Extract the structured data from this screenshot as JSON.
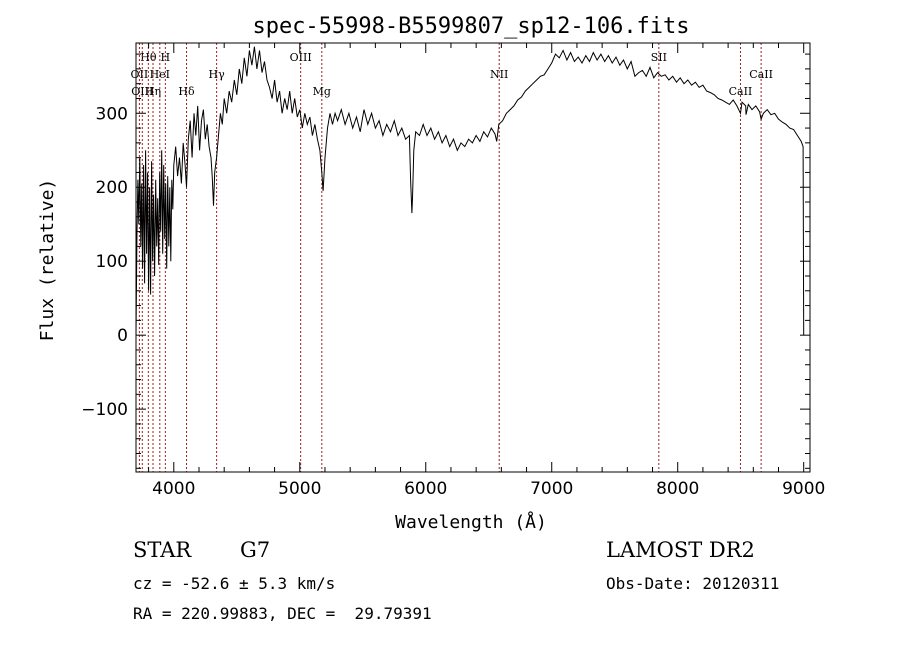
{
  "chart_data": {
    "type": "line",
    "title": "spec-55998-B5599807_sp12-106.fits",
    "xlabel": "Wavelength (Å)",
    "ylabel": "Flux (relative)",
    "xlim": [
      3700,
      9050
    ],
    "ylim": [
      -185,
      395
    ],
    "x_ticks": [
      4000,
      5000,
      6000,
      7000,
      8000,
      9000
    ],
    "y_ticks": [
      -100,
      0,
      100,
      200,
      300
    ],
    "grid": false,
    "series": [
      {
        "values": [
          [
            3700,
            0
          ],
          [
            3708,
            140
          ],
          [
            3715,
            210
          ],
          [
            3722,
            150
          ],
          [
            3730,
            240
          ],
          [
            3738,
            120
          ],
          [
            3745,
            205
          ],
          [
            3752,
            90
          ],
          [
            3760,
            230
          ],
          [
            3768,
            70
          ],
          [
            3776,
            250
          ],
          [
            3784,
            110
          ],
          [
            3792,
            220
          ],
          [
            3800,
            60
          ],
          [
            3808,
            200
          ],
          [
            3816,
            55
          ],
          [
            3824,
            235
          ],
          [
            3832,
            100
          ],
          [
            3840,
            190
          ],
          [
            3848,
            80
          ],
          [
            3856,
            210
          ],
          [
            3864,
            120
          ],
          [
            3872,
            185
          ],
          [
            3880,
            95
          ],
          [
            3888,
            220
          ],
          [
            3896,
            140
          ],
          [
            3904,
            250
          ],
          [
            3912,
            110
          ],
          [
            3920,
            230
          ],
          [
            3928,
            130
          ],
          [
            3936,
            205
          ],
          [
            3944,
            90
          ],
          [
            3952,
            215
          ],
          [
            3960,
            120
          ],
          [
            3968,
            200
          ],
          [
            3976,
            100
          ],
          [
            3984,
            210
          ],
          [
            3992,
            170
          ],
          [
            4000,
            230
          ],
          [
            4015,
            255
          ],
          [
            4030,
            215
          ],
          [
            4045,
            240
          ],
          [
            4060,
            205
          ],
          [
            4075,
            260
          ],
          [
            4090,
            230
          ],
          [
            4101,
            200
          ],
          [
            4115,
            265
          ],
          [
            4130,
            290
          ],
          [
            4145,
            240
          ],
          [
            4160,
            300
          ],
          [
            4175,
            270
          ],
          [
            4190,
            310
          ],
          [
            4205,
            250
          ],
          [
            4220,
            290
          ],
          [
            4235,
            305
          ],
          [
            4250,
            265
          ],
          [
            4265,
            285
          ],
          [
            4280,
            255
          ],
          [
            4295,
            240
          ],
          [
            4305,
            215
          ],
          [
            4315,
            175
          ],
          [
            4325,
            220
          ],
          [
            4340,
            240
          ],
          [
            4355,
            270
          ],
          [
            4370,
            300
          ],
          [
            4385,
            285
          ],
          [
            4400,
            320
          ],
          [
            4420,
            300
          ],
          [
            4440,
            330
          ],
          [
            4460,
            315
          ],
          [
            4480,
            345
          ],
          [
            4500,
            325
          ],
          [
            4520,
            360
          ],
          [
            4540,
            340
          ],
          [
            4560,
            375
          ],
          [
            4580,
            350
          ],
          [
            4600,
            385
          ],
          [
            4620,
            365
          ],
          [
            4640,
            390
          ],
          [
            4660,
            360
          ],
          [
            4680,
            385
          ],
          [
            4700,
            355
          ],
          [
            4720,
            370
          ],
          [
            4740,
            345
          ],
          [
            4760,
            335
          ],
          [
            4780,
            320
          ],
          [
            4800,
            345
          ],
          [
            4820,
            315
          ],
          [
            4840,
            330
          ],
          [
            4860,
            300
          ],
          [
            4880,
            320
          ],
          [
            4900,
            305
          ],
          [
            4920,
            330
          ],
          [
            4940,
            300
          ],
          [
            4960,
            320
          ],
          [
            4980,
            295
          ],
          [
            5000,
            305
          ],
          [
            5020,
            280
          ],
          [
            5040,
            300
          ],
          [
            5060,
            285
          ],
          [
            5080,
            295
          ],
          [
            5100,
            270
          ],
          [
            5120,
            285
          ],
          [
            5140,
            265
          ],
          [
            5160,
            250
          ],
          [
            5175,
            220
          ],
          [
            5185,
            195
          ],
          [
            5200,
            240
          ],
          [
            5220,
            280
          ],
          [
            5240,
            300
          ],
          [
            5260,
            285
          ],
          [
            5280,
            300
          ],
          [
            5300,
            290
          ],
          [
            5330,
            305
          ],
          [
            5360,
            285
          ],
          [
            5390,
            300
          ],
          [
            5420,
            280
          ],
          [
            5450,
            295
          ],
          [
            5480,
            275
          ],
          [
            5510,
            305
          ],
          [
            5540,
            285
          ],
          [
            5570,
            300
          ],
          [
            5600,
            280
          ],
          [
            5630,
            290
          ],
          [
            5660,
            270
          ],
          [
            5690,
            285
          ],
          [
            5720,
            275
          ],
          [
            5750,
            290
          ],
          [
            5780,
            270
          ],
          [
            5810,
            280
          ],
          [
            5840,
            265
          ],
          [
            5870,
            270
          ],
          [
            5880,
            210
          ],
          [
            5890,
            165
          ],
          [
            5895,
            185
          ],
          [
            5905,
            250
          ],
          [
            5920,
            275
          ],
          [
            5950,
            270
          ],
          [
            5980,
            285
          ],
          [
            6010,
            270
          ],
          [
            6040,
            280
          ],
          [
            6070,
            265
          ],
          [
            6100,
            275
          ],
          [
            6130,
            260
          ],
          [
            6160,
            270
          ],
          [
            6190,
            255
          ],
          [
            6220,
            265
          ],
          [
            6250,
            250
          ],
          [
            6280,
            260
          ],
          [
            6310,
            255
          ],
          [
            6340,
            265
          ],
          [
            6370,
            260
          ],
          [
            6400,
            270
          ],
          [
            6430,
            262
          ],
          [
            6460,
            275
          ],
          [
            6490,
            268
          ],
          [
            6520,
            280
          ],
          [
            6550,
            272
          ],
          [
            6563,
            262
          ],
          [
            6580,
            285
          ],
          [
            6610,
            290
          ],
          [
            6640,
            300
          ],
          [
            6670,
            305
          ],
          [
            6700,
            310
          ],
          [
            6730,
            318
          ],
          [
            6760,
            322
          ],
          [
            6790,
            330
          ],
          [
            6820,
            335
          ],
          [
            6850,
            340
          ],
          [
            6880,
            345
          ],
          [
            6910,
            350
          ],
          [
            6940,
            352
          ],
          [
            6970,
            360
          ],
          [
            7000,
            368
          ],
          [
            7030,
            380
          ],
          [
            7060,
            375
          ],
          [
            7090,
            385
          ],
          [
            7120,
            372
          ],
          [
            7150,
            382
          ],
          [
            7180,
            370
          ],
          [
            7210,
            376
          ],
          [
            7240,
            368
          ],
          [
            7270,
            378
          ],
          [
            7300,
            370
          ],
          [
            7330,
            382
          ],
          [
            7360,
            372
          ],
          [
            7390,
            380
          ],
          [
            7420,
            370
          ],
          [
            7450,
            378
          ],
          [
            7480,
            368
          ],
          [
            7510,
            376
          ],
          [
            7540,
            365
          ],
          [
            7570,
            372
          ],
          [
            7600,
            360
          ],
          [
            7630,
            370
          ],
          [
            7660,
            350
          ],
          [
            7690,
            355
          ],
          [
            7720,
            358
          ],
          [
            7750,
            350
          ],
          [
            7780,
            362
          ],
          [
            7810,
            348
          ],
          [
            7840,
            355
          ],
          [
            7870,
            350
          ],
          [
            7900,
            352
          ],
          [
            7930,
            345
          ],
          [
            7960,
            350
          ],
          [
            7990,
            342
          ],
          [
            8020,
            348
          ],
          [
            8050,
            340
          ],
          [
            8080,
            345
          ],
          [
            8110,
            338
          ],
          [
            8140,
            342
          ],
          [
            8170,
            335
          ],
          [
            8200,
            338
          ],
          [
            8230,
            330
          ],
          [
            8260,
            328
          ],
          [
            8290,
            325
          ],
          [
            8320,
            320
          ],
          [
            8350,
            318
          ],
          [
            8380,
            315
          ],
          [
            8410,
            312
          ],
          [
            8440,
            318
          ],
          [
            8470,
            310
          ],
          [
            8498,
            300
          ],
          [
            8510,
            315
          ],
          [
            8540,
            310
          ],
          [
            8542,
            298
          ],
          [
            8560,
            312
          ],
          [
            8590,
            305
          ],
          [
            8620,
            310
          ],
          [
            8650,
            302
          ],
          [
            8662,
            292
          ],
          [
            8680,
            300
          ],
          [
            8710,
            305
          ],
          [
            8740,
            298
          ],
          [
            8770,
            300
          ],
          [
            8800,
            292
          ],
          [
            8830,
            288
          ],
          [
            8860,
            285
          ],
          [
            8890,
            280
          ],
          [
            8920,
            278
          ],
          [
            8950,
            270
          ],
          [
            8980,
            262
          ],
          [
            8995,
            255
          ],
          [
            9000,
            0
          ]
        ]
      }
    ],
    "line_markers": [
      {
        "label": "Hθ",
        "wavelength": 3798,
        "row": 1
      },
      {
        "label": "H",
        "wavelength": 3933,
        "row": 1
      },
      {
        "label": "OII",
        "wavelength": 3727,
        "row": 2
      },
      {
        "label": "HeI",
        "wavelength": 3889,
        "row": 2
      },
      {
        "label": "OIII",
        "wavelength": 3750,
        "row": 3
      },
      {
        "label": "Hη",
        "wavelength": 3835,
        "row": 3
      },
      {
        "label": "Hδ",
        "wavelength": 4101,
        "row": 3
      },
      {
        "label": "Hγ",
        "wavelength": 4340,
        "row": 2
      },
      {
        "label": "OIII",
        "wavelength": 5007,
        "row": 1
      },
      {
        "label": "Mg",
        "wavelength": 5175,
        "row": 3
      },
      {
        "label": "NII",
        "wavelength": 6583,
        "row": 2
      },
      {
        "label": "SII",
        "wavelength": 7850,
        "row": 1
      },
      {
        "label": "CaII",
        "wavelength": 8662,
        "row": 2
      },
      {
        "label": "CaII",
        "wavelength": 8498,
        "row": 3
      }
    ],
    "colors": {
      "spectrum": "#000000",
      "marker_lines": "#a11e1e",
      "frame": "#000000"
    }
  },
  "info": {
    "object_class": "STAR",
    "subclass": "G7",
    "survey": "LAMOST DR2",
    "redshift": "cz = -52.6 ± 5.3 km/s",
    "obs_date": "Obs-Date: 20120311",
    "coords": "RA = 220.99883, DEC =  29.79391"
  }
}
